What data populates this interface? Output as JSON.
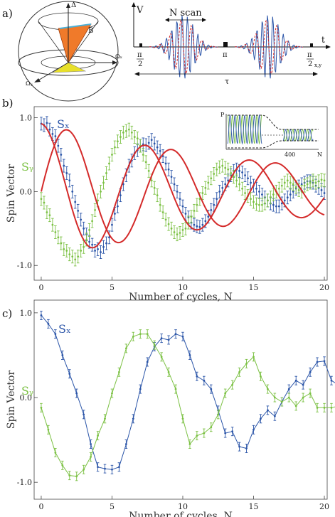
{
  "panel_a": {
    "label": "a)",
    "sphere": {
      "label_delta": "Δ",
      "label_b": "B",
      "label_omega_x": "Ωₓ",
      "label_omega_y": "Ωᵧ"
    },
    "pulses": {
      "label_v": "V",
      "label_t": "t",
      "label_n_scan": "N scan",
      "label_pi_half": "π",
      "label_pi_half_den": "2",
      "label_pi": "π",
      "label_pi_half_xy": "π",
      "label_pi_half_xy_den": "2",
      "label_xy_sub": "x,y",
      "label_tau": "τ"
    }
  },
  "chart_data": [
    {
      "type": "scatter",
      "panel": "b)",
      "xlabel": "Number of cycles, N",
      "ylabel": "Spin Vector",
      "xlim": [
        -0.5,
        20.2
      ],
      "ylim": [
        -1.2,
        1.15
      ],
      "xticks": [
        "0",
        "5",
        "10",
        "15",
        "20"
      ],
      "yticks": [
        "1.0",
        "0.0",
        "-1.0"
      ],
      "x_step": 0.2,
      "series": [
        {
          "name": "Sₓ",
          "color": "#2b55a8",
          "values": [
            0.92,
            0.9,
            0.93,
            0.84,
            0.78,
            0.75,
            0.62,
            0.5,
            0.35,
            0.25,
            0.15,
            0.0,
            -0.14,
            -0.26,
            -0.38,
            -0.5,
            -0.58,
            -0.68,
            -0.72,
            -0.8,
            -0.78,
            -0.82,
            -0.75,
            -0.7,
            -0.62,
            -0.45,
            -0.3,
            -0.2,
            -0.05,
            0.1,
            0.22,
            0.35,
            0.42,
            0.52,
            0.56,
            0.62,
            0.64,
            0.63,
            0.66,
            0.7,
            0.65,
            0.6,
            0.55,
            0.48,
            0.38,
            0.3,
            0.2,
            0.1,
            0.0,
            -0.1,
            -0.2,
            -0.3,
            -0.35,
            -0.42,
            -0.45,
            -0.47,
            -0.48,
            -0.45,
            -0.4,
            -0.34,
            -0.25,
            -0.18,
            -0.1,
            0.0,
            0.05,
            0.1,
            0.15,
            0.22,
            0.28,
            0.3,
            0.28,
            0.26,
            0.22,
            0.18,
            0.12,
            0.08,
            0.04,
            0.0,
            -0.04,
            -0.08,
            -0.12,
            -0.16,
            -0.18,
            -0.2,
            -0.2,
            -0.16,
            -0.12,
            -0.08,
            -0.04,
            0.0,
            0.04,
            0.07,
            0.1,
            0.12,
            0.14,
            0.14,
            0.12,
            0.08,
            0.05,
            0.02,
            -0.02
          ]
        },
        {
          "name": "Sᵧ",
          "color": "#7cc144",
          "values": [
            -0.1,
            -0.15,
            -0.28,
            -0.32,
            -0.45,
            -0.55,
            -0.62,
            -0.7,
            -0.78,
            -0.8,
            -0.85,
            -0.88,
            -0.92,
            -0.88,
            -0.8,
            -0.75,
            -0.65,
            -0.52,
            -0.4,
            -0.25,
            -0.12,
            0.0,
            0.12,
            0.25,
            0.38,
            0.5,
            0.6,
            0.68,
            0.74,
            0.8,
            0.82,
            0.84,
            0.8,
            0.74,
            0.72,
            0.62,
            0.5,
            0.4,
            0.28,
            0.15,
            0.05,
            -0.05,
            -0.18,
            -0.28,
            -0.38,
            -0.44,
            -0.5,
            -0.55,
            -0.58,
            -0.56,
            -0.52,
            -0.5,
            -0.42,
            -0.34,
            -0.26,
            -0.18,
            -0.1,
            -0.02,
            0.05,
            0.12,
            0.18,
            0.24,
            0.3,
            0.33,
            0.35,
            0.32,
            0.3,
            0.25,
            0.2,
            0.15,
            0.1,
            0.04,
            -0.02,
            -0.06,
            -0.1,
            -0.14,
            -0.17,
            -0.18,
            -0.18,
            -0.16,
            -0.12,
            -0.08,
            -0.04,
            0.0,
            0.04,
            0.08,
            0.12,
            0.15,
            0.12,
            0.1,
            0.06,
            0.02,
            0.0,
            0.08,
            0.1,
            0.12,
            0.15,
            0.12,
            0.14,
            0.16,
            0.15
          ]
        }
      ],
      "fits": [
        {
          "A": 0.92,
          "f": 0.1355,
          "phase": 0.0,
          "decay": 0.052,
          "color": "#d42a2a"
        },
        {
          "A": -0.92,
          "f": 0.1355,
          "phase": 1.5708,
          "decay": 0.052,
          "color": "#d42a2a"
        }
      ],
      "inset": {
        "ylabel": "P",
        "xlabel": "N",
        "xtick": "400"
      }
    },
    {
      "type": "line",
      "panel": "c)",
      "xlabel": "Number of cycles, N",
      "ylabel": "Spin Vector",
      "xlim": [
        -0.5,
        20.2
      ],
      "ylim": [
        -1.2,
        1.15
      ],
      "xticks": [
        "0",
        "5",
        "10",
        "15",
        "20"
      ],
      "yticks": [
        "1.0",
        "0.0",
        "-1.0"
      ],
      "x_step": 0.5,
      "series": [
        {
          "name": "Sₓ",
          "color": "#2b55a8",
          "values": [
            0.97,
            0.87,
            0.75,
            0.5,
            0.28,
            0.05,
            -0.2,
            -0.55,
            -0.82,
            -0.84,
            -0.85,
            -0.82,
            -0.55,
            -0.25,
            0.1,
            0.42,
            0.6,
            0.7,
            0.68,
            0.75,
            0.72,
            0.5,
            0.25,
            0.2,
            0.1,
            -0.15,
            -0.42,
            -0.4,
            -0.58,
            -0.6,
            -0.38,
            -0.25,
            -0.15,
            -0.22,
            -0.05,
            0.1,
            0.2,
            0.15,
            0.3,
            0.42,
            0.43,
            0.2,
            0.15,
            0.12,
            0.1
          ]
        },
        {
          "name": "Sᵧ",
          "color": "#7cc144",
          "values": [
            -0.12,
            -0.38,
            -0.65,
            -0.8,
            -0.92,
            -0.93,
            -0.85,
            -0.7,
            -0.45,
            -0.25,
            0.05,
            0.3,
            0.58,
            0.72,
            0.75,
            0.75,
            0.62,
            0.48,
            0.3,
            0.1,
            -0.25,
            -0.55,
            -0.45,
            -0.42,
            -0.35,
            -0.2,
            0.05,
            0.15,
            0.3,
            0.4,
            0.48,
            0.25,
            0.1,
            0.0,
            -0.05,
            0.0,
            -0.1,
            0.0,
            0.05,
            -0.12,
            -0.12,
            -0.12,
            -0.1,
            0.05,
            0.1
          ]
        }
      ]
    }
  ]
}
